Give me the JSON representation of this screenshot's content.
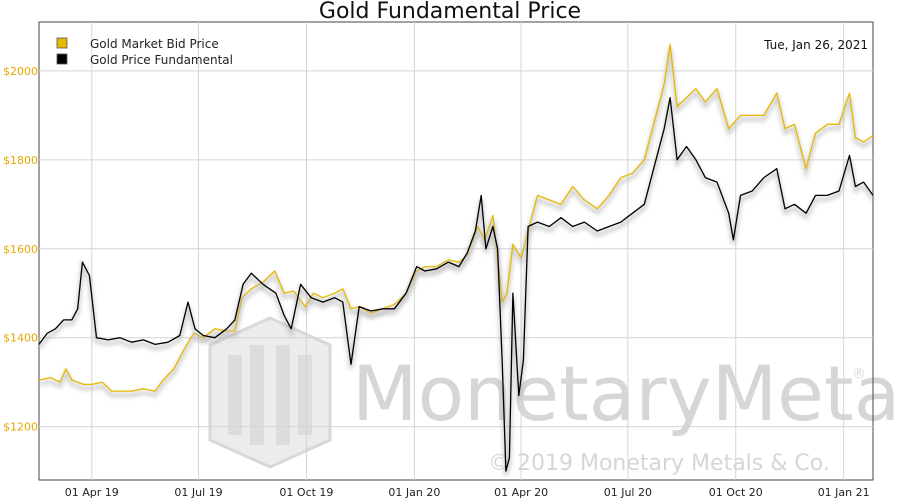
{
  "chart_data": {
    "type": "line",
    "title": "Gold Fundamental Price",
    "date_label": "Tue, Jan 26, 2021",
    "xlabel": "",
    "ylabel": "",
    "x_range": [
      "2019-02-15",
      "2021-01-26"
    ],
    "ylim": [
      1080,
      2110
    ],
    "grid": true,
    "legend_position": "top-left",
    "y_ticks": [
      {
        "value": 1200,
        "label": "$1200"
      },
      {
        "value": 1400,
        "label": "$1400"
      },
      {
        "value": 1600,
        "label": "$1600"
      },
      {
        "value": 1800,
        "label": "$1800"
      },
      {
        "value": 2000,
        "label": "$2000"
      }
    ],
    "x_ticks": [
      {
        "date": "2019-04-01",
        "label": "01 Apr 19"
      },
      {
        "date": "2019-07-01",
        "label": "01 Jul 19"
      },
      {
        "date": "2019-10-01",
        "label": "01 Oct 19"
      },
      {
        "date": "2020-01-01",
        "label": "01 Jan 20"
      },
      {
        "date": "2020-04-01",
        "label": "01 Apr 20"
      },
      {
        "date": "2020-07-01",
        "label": "01 Jul 20"
      },
      {
        "date": "2020-10-01",
        "label": "01 Oct 20"
      },
      {
        "date": "2021-01-01",
        "label": "01 Jan 21"
      }
    ],
    "series": [
      {
        "name": "Gold Market Bid Price",
        "color": "#e6b800",
        "points": [
          [
            "2019-02-15",
            1305
          ],
          [
            "2019-02-25",
            1310
          ],
          [
            "2019-03-05",
            1300
          ],
          [
            "2019-03-10",
            1330
          ],
          [
            "2019-03-15",
            1305
          ],
          [
            "2019-03-25",
            1295
          ],
          [
            "2019-04-01",
            1295
          ],
          [
            "2019-04-10",
            1300
          ],
          [
            "2019-04-18",
            1280
          ],
          [
            "2019-04-28",
            1280
          ],
          [
            "2019-05-05",
            1280
          ],
          [
            "2019-05-15",
            1285
          ],
          [
            "2019-05-25",
            1280
          ],
          [
            "2019-06-01",
            1305
          ],
          [
            "2019-06-10",
            1330
          ],
          [
            "2019-06-20",
            1380
          ],
          [
            "2019-06-27",
            1410
          ],
          [
            "2019-07-05",
            1400
          ],
          [
            "2019-07-15",
            1420
          ],
          [
            "2019-07-25",
            1415
          ],
          [
            "2019-08-01",
            1415
          ],
          [
            "2019-08-07",
            1490
          ],
          [
            "2019-08-15",
            1510
          ],
          [
            "2019-08-25",
            1525
          ],
          [
            "2019-09-04",
            1550
          ],
          [
            "2019-09-12",
            1500
          ],
          [
            "2019-09-20",
            1505
          ],
          [
            "2019-09-30",
            1470
          ],
          [
            "2019-10-07",
            1500
          ],
          [
            "2019-10-15",
            1490
          ],
          [
            "2019-10-25",
            1500
          ],
          [
            "2019-11-01",
            1510
          ],
          [
            "2019-11-08",
            1465
          ],
          [
            "2019-11-15",
            1470
          ],
          [
            "2019-11-25",
            1455
          ],
          [
            "2019-12-05",
            1465
          ],
          [
            "2019-12-15",
            1475
          ],
          [
            "2019-12-25",
            1500
          ],
          [
            "2020-01-03",
            1550
          ],
          [
            "2020-01-10",
            1560
          ],
          [
            "2020-01-20",
            1560
          ],
          [
            "2020-01-30",
            1575
          ],
          [
            "2020-02-08",
            1570
          ],
          [
            "2020-02-15",
            1585
          ],
          [
            "2020-02-24",
            1650
          ],
          [
            "2020-03-01",
            1620
          ],
          [
            "2020-03-08",
            1675
          ],
          [
            "2020-03-16",
            1480
          ],
          [
            "2020-03-20",
            1500
          ],
          [
            "2020-03-25",
            1610
          ],
          [
            "2020-04-01",
            1580
          ],
          [
            "2020-04-08",
            1650
          ],
          [
            "2020-04-15",
            1720
          ],
          [
            "2020-04-25",
            1710
          ],
          [
            "2020-05-05",
            1700
          ],
          [
            "2020-05-15",
            1740
          ],
          [
            "2020-05-25",
            1710
          ],
          [
            "2020-06-05",
            1690
          ],
          [
            "2020-06-15",
            1720
          ],
          [
            "2020-06-25",
            1760
          ],
          [
            "2020-07-05",
            1770
          ],
          [
            "2020-07-15",
            1800
          ],
          [
            "2020-07-25",
            1900
          ],
          [
            "2020-08-01",
            1970
          ],
          [
            "2020-08-06",
            2060
          ],
          [
            "2020-08-12",
            1920
          ],
          [
            "2020-08-20",
            1940
          ],
          [
            "2020-08-28",
            1960
          ],
          [
            "2020-09-05",
            1930
          ],
          [
            "2020-09-15",
            1960
          ],
          [
            "2020-09-25",
            1870
          ],
          [
            "2020-10-05",
            1900
          ],
          [
            "2020-10-15",
            1900
          ],
          [
            "2020-10-25",
            1900
          ],
          [
            "2020-11-05",
            1950
          ],
          [
            "2020-11-12",
            1870
          ],
          [
            "2020-11-20",
            1880
          ],
          [
            "2020-11-30",
            1780
          ],
          [
            "2020-12-08",
            1860
          ],
          [
            "2020-12-18",
            1880
          ],
          [
            "2020-12-28",
            1880
          ],
          [
            "2021-01-06",
            1950
          ],
          [
            "2021-01-11",
            1850
          ],
          [
            "2021-01-18",
            1840
          ],
          [
            "2021-01-26",
            1855
          ]
        ]
      },
      {
        "name": "Gold Price Fundamental",
        "color": "#000000",
        "points": [
          [
            "2019-02-15",
            1385
          ],
          [
            "2019-02-22",
            1410
          ],
          [
            "2019-03-01",
            1420
          ],
          [
            "2019-03-08",
            1440
          ],
          [
            "2019-03-15",
            1440
          ],
          [
            "2019-03-20",
            1465
          ],
          [
            "2019-03-24",
            1570
          ],
          [
            "2019-03-30",
            1540
          ],
          [
            "2019-04-05",
            1400
          ],
          [
            "2019-04-15",
            1395
          ],
          [
            "2019-04-25",
            1400
          ],
          [
            "2019-05-05",
            1390
          ],
          [
            "2019-05-15",
            1395
          ],
          [
            "2019-05-25",
            1385
          ],
          [
            "2019-06-05",
            1390
          ],
          [
            "2019-06-15",
            1405
          ],
          [
            "2019-06-22",
            1480
          ],
          [
            "2019-06-28",
            1420
          ],
          [
            "2019-07-05",
            1405
          ],
          [
            "2019-07-15",
            1400
          ],
          [
            "2019-07-25",
            1420
          ],
          [
            "2019-08-01",
            1440
          ],
          [
            "2019-08-08",
            1520
          ],
          [
            "2019-08-15",
            1545
          ],
          [
            "2019-08-25",
            1520
          ],
          [
            "2019-09-05",
            1500
          ],
          [
            "2019-09-12",
            1450
          ],
          [
            "2019-09-18",
            1420
          ],
          [
            "2019-09-26",
            1520
          ],
          [
            "2019-10-05",
            1490
          ],
          [
            "2019-10-15",
            1480
          ],
          [
            "2019-10-25",
            1490
          ],
          [
            "2019-11-01",
            1480
          ],
          [
            "2019-11-08",
            1340
          ],
          [
            "2019-11-15",
            1470
          ],
          [
            "2019-11-25",
            1460
          ],
          [
            "2019-12-05",
            1465
          ],
          [
            "2019-12-15",
            1465
          ],
          [
            "2019-12-25",
            1500
          ],
          [
            "2020-01-03",
            1560
          ],
          [
            "2020-01-10",
            1550
          ],
          [
            "2020-01-20",
            1555
          ],
          [
            "2020-01-30",
            1570
          ],
          [
            "2020-02-08",
            1560
          ],
          [
            "2020-02-15",
            1590
          ],
          [
            "2020-02-22",
            1640
          ],
          [
            "2020-02-27",
            1720
          ],
          [
            "2020-03-02",
            1600
          ],
          [
            "2020-03-08",
            1650
          ],
          [
            "2020-03-12",
            1600
          ],
          [
            "2020-03-16",
            1340
          ],
          [
            "2020-03-19",
            1100
          ],
          [
            "2020-03-22",
            1130
          ],
          [
            "2020-03-25",
            1500
          ],
          [
            "2020-03-30",
            1270
          ],
          [
            "2020-04-03",
            1350
          ],
          [
            "2020-04-07",
            1650
          ],
          [
            "2020-04-15",
            1660
          ],
          [
            "2020-04-25",
            1650
          ],
          [
            "2020-05-05",
            1670
          ],
          [
            "2020-05-15",
            1650
          ],
          [
            "2020-05-25",
            1660
          ],
          [
            "2020-06-05",
            1640
          ],
          [
            "2020-06-15",
            1650
          ],
          [
            "2020-06-25",
            1660
          ],
          [
            "2020-07-05",
            1680
          ],
          [
            "2020-07-15",
            1700
          ],
          [
            "2020-07-25",
            1800
          ],
          [
            "2020-08-01",
            1870
          ],
          [
            "2020-08-06",
            1940
          ],
          [
            "2020-08-12",
            1800
          ],
          [
            "2020-08-20",
            1830
          ],
          [
            "2020-08-28",
            1800
          ],
          [
            "2020-09-05",
            1760
          ],
          [
            "2020-09-15",
            1750
          ],
          [
            "2020-09-25",
            1680
          ],
          [
            "2020-09-29",
            1620
          ],
          [
            "2020-10-05",
            1720
          ],
          [
            "2020-10-15",
            1730
          ],
          [
            "2020-10-25",
            1760
          ],
          [
            "2020-11-05",
            1780
          ],
          [
            "2020-11-12",
            1690
          ],
          [
            "2020-11-20",
            1700
          ],
          [
            "2020-11-30",
            1680
          ],
          [
            "2020-12-08",
            1720
          ],
          [
            "2020-12-18",
            1720
          ],
          [
            "2020-12-28",
            1730
          ],
          [
            "2021-01-06",
            1810
          ],
          [
            "2021-01-11",
            1740
          ],
          [
            "2021-01-18",
            1750
          ],
          [
            "2021-01-26",
            1720
          ]
        ]
      }
    ]
  },
  "watermark": {
    "text": "MonetaryMetals",
    "copyright": "© 2019 Monetary Metals & Co.",
    "registered": "®"
  }
}
